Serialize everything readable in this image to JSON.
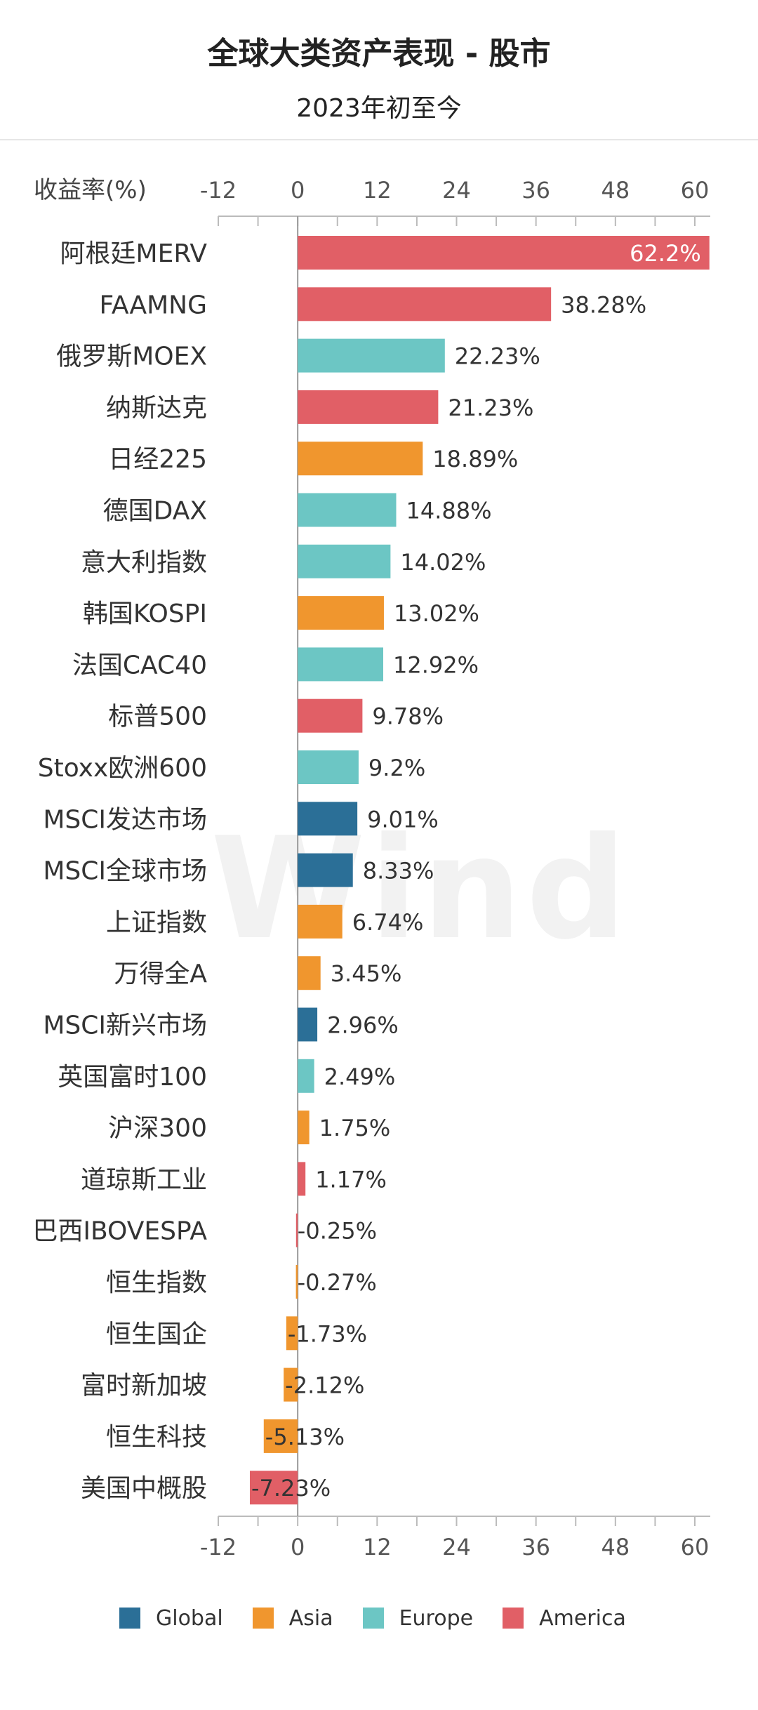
{
  "chart_data": {
    "type": "bar",
    "orientation": "horizontal",
    "title": "全球大类资产表现 - 股市",
    "subtitle": "2023年初至今",
    "axis_label": "收益率(%)",
    "xlim": [
      -12,
      60
    ],
    "ticks": [
      -12,
      0,
      12,
      24,
      36,
      48,
      60
    ],
    "grid": false,
    "legend_position": "bottom",
    "watermark": "Wind",
    "groups": [
      {
        "name": "Global",
        "color": "#2b6f97"
      },
      {
        "name": "Asia",
        "color": "#f0962e"
      },
      {
        "name": "Europe",
        "color": "#6cc6c4"
      },
      {
        "name": "America",
        "color": "#e15f66"
      }
    ],
    "bars": [
      {
        "category": "阿根廷MERV",
        "value": 62.2,
        "label": "62.2%",
        "group": "America"
      },
      {
        "category": "FAAMNG",
        "value": 38.28,
        "label": "38.28%",
        "group": "America"
      },
      {
        "category": "俄罗斯MOEX",
        "value": 22.23,
        "label": "22.23%",
        "group": "Europe"
      },
      {
        "category": "纳斯达克",
        "value": 21.23,
        "label": "21.23%",
        "group": "America"
      },
      {
        "category": "日经225",
        "value": 18.89,
        "label": "18.89%",
        "group": "Asia"
      },
      {
        "category": "德国DAX",
        "value": 14.88,
        "label": "14.88%",
        "group": "Europe"
      },
      {
        "category": "意大利指数",
        "value": 14.02,
        "label": "14.02%",
        "group": "Europe"
      },
      {
        "category": "韩国KOSPI",
        "value": 13.02,
        "label": "13.02%",
        "group": "Asia"
      },
      {
        "category": "法国CAC40",
        "value": 12.92,
        "label": "12.92%",
        "group": "Europe"
      },
      {
        "category": "标普500",
        "value": 9.78,
        "label": "9.78%",
        "group": "America"
      },
      {
        "category": "Stoxx欧洲600",
        "value": 9.2,
        "label": "9.2%",
        "group": "Europe"
      },
      {
        "category": "MSCI发达市场",
        "value": 9.01,
        "label": "9.01%",
        "group": "Global"
      },
      {
        "category": "MSCI全球市场",
        "value": 8.33,
        "label": "8.33%",
        "group": "Global"
      },
      {
        "category": "上证指数",
        "value": 6.74,
        "label": "6.74%",
        "group": "Asia"
      },
      {
        "category": "万得全A",
        "value": 3.45,
        "label": "3.45%",
        "group": "Asia"
      },
      {
        "category": "MSCI新兴市场",
        "value": 2.96,
        "label": "2.96%",
        "group": "Global"
      },
      {
        "category": "英国富时100",
        "value": 2.49,
        "label": "2.49%",
        "group": "Europe"
      },
      {
        "category": "沪深300",
        "value": 1.75,
        "label": "1.75%",
        "group": "Asia"
      },
      {
        "category": "道琼斯工业",
        "value": 1.17,
        "label": "1.17%",
        "group": "America"
      },
      {
        "category": "巴西IBOVESPA",
        "value": -0.25,
        "label": "-0.25%",
        "group": "America"
      },
      {
        "category": "恒生指数",
        "value": -0.27,
        "label": "-0.27%",
        "group": "Asia"
      },
      {
        "category": "恒生国企",
        "value": -1.73,
        "label": "-1.73%",
        "group": "Asia"
      },
      {
        "category": "富时新加坡",
        "value": -2.12,
        "label": "-2.12%",
        "group": "Asia"
      },
      {
        "category": "恒生科技",
        "value": -5.13,
        "label": "-5.13%",
        "group": "Asia"
      },
      {
        "category": "美国中概股",
        "value": -7.23,
        "label": "-7.23%",
        "group": "America"
      }
    ]
  }
}
